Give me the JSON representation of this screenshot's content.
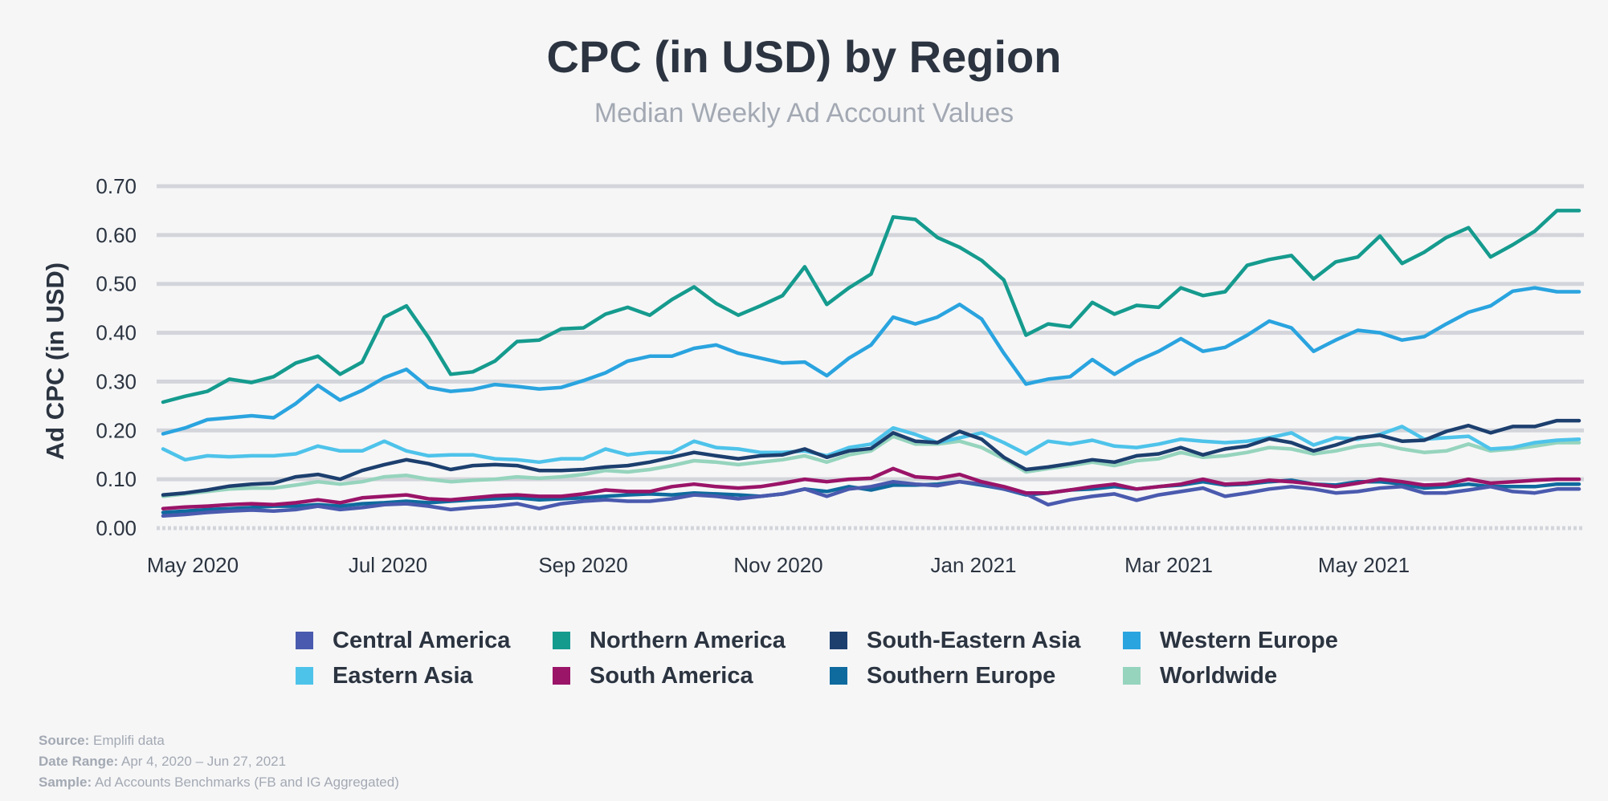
{
  "title": "CPC (in USD) by Region",
  "subtitle": "Median Weekly Ad Account Values",
  "footnotes": {
    "source_label": "Source:",
    "source_value": "Emplifi data",
    "range_label": "Date Range:",
    "range_value": "Apr 4, 2020 – Jun 27, 2021",
    "sample_label": "Sample:",
    "sample_value": "Ad Accounts Benchmarks (FB and IG Aggregated)"
  },
  "chart_data": {
    "type": "line",
    "title": "CPC (in USD) by Region",
    "subtitle": "Median Weekly Ad Account Values",
    "xlabel": "",
    "ylabel": "Ad CPC (in USD)",
    "ylim": [
      0,
      0.7
    ],
    "yticks": [
      "0.00",
      "0.10",
      "0.20",
      "0.30",
      "0.40",
      "0.50",
      "0.60",
      "0.70"
    ],
    "xticks": [
      "May 2020",
      "Jul 2020",
      "Sep 2020",
      "Nov 2020",
      "Jan 2021",
      "Mar 2021",
      "May 2021"
    ],
    "x_note": "Weekly points, Apr 4, 2020 – Jun 27, 2021 (65 weeks)",
    "grid": true,
    "legend_position": "bottom",
    "series": [
      {
        "name": "Central America",
        "color": "#4a5aae",
        "values": [
          0.025,
          0.028,
          0.032,
          0.035,
          0.037,
          0.035,
          0.038,
          0.045,
          0.038,
          0.042,
          0.048,
          0.05,
          0.045,
          0.038,
          0.042,
          0.045,
          0.05,
          0.04,
          0.05,
          0.055,
          0.058,
          0.055,
          0.055,
          0.06,
          0.068,
          0.065,
          0.06,
          0.065,
          0.07,
          0.08,
          0.065,
          0.08,
          0.085,
          0.095,
          0.09,
          0.087,
          0.095,
          0.09,
          0.08,
          0.07,
          0.048,
          0.058,
          0.065,
          0.07,
          0.057,
          0.068,
          0.075,
          0.082,
          0.065,
          0.072,
          0.08,
          0.085,
          0.08,
          0.072,
          0.075,
          0.082,
          0.085,
          0.072,
          0.072,
          0.078,
          0.085,
          0.075,
          0.072,
          0.08,
          0.08
        ]
      },
      {
        "name": "Northern America",
        "color": "#159b8e",
        "values": [
          0.258,
          0.27,
          0.28,
          0.305,
          0.298,
          0.31,
          0.338,
          0.352,
          0.315,
          0.34,
          0.432,
          0.455,
          0.39,
          0.315,
          0.32,
          0.342,
          0.382,
          0.385,
          0.408,
          0.41,
          0.438,
          0.452,
          0.436,
          0.468,
          0.494,
          0.46,
          0.436,
          0.455,
          0.476,
          0.535,
          0.458,
          0.492,
          0.52,
          0.637,
          0.632,
          0.595,
          0.575,
          0.548,
          0.508,
          0.395,
          0.418,
          0.412,
          0.462,
          0.438,
          0.456,
          0.452,
          0.492,
          0.476,
          0.484,
          0.538,
          0.55,
          0.558,
          0.51,
          0.545,
          0.555,
          0.598,
          0.542,
          0.565,
          0.595,
          0.615,
          0.555,
          0.58,
          0.608,
          0.65,
          0.65
        ]
      },
      {
        "name": "South-Eastern Asia",
        "color": "#1c3f6e",
        "values": [
          0.068,
          0.072,
          0.078,
          0.086,
          0.09,
          0.092,
          0.105,
          0.11,
          0.1,
          0.118,
          0.13,
          0.14,
          0.132,
          0.12,
          0.128,
          0.13,
          0.128,
          0.118,
          0.118,
          0.12,
          0.125,
          0.128,
          0.135,
          0.145,
          0.155,
          0.148,
          0.142,
          0.148,
          0.15,
          0.162,
          0.145,
          0.158,
          0.163,
          0.195,
          0.178,
          0.175,
          0.198,
          0.182,
          0.145,
          0.12,
          0.125,
          0.132,
          0.14,
          0.135,
          0.148,
          0.152,
          0.165,
          0.15,
          0.162,
          0.168,
          0.183,
          0.175,
          0.158,
          0.17,
          0.185,
          0.19,
          0.178,
          0.18,
          0.198,
          0.21,
          0.195,
          0.208,
          0.208,
          0.22,
          0.22
        ]
      },
      {
        "name": "Western Europe",
        "color": "#2aa4df",
        "values": [
          0.193,
          0.205,
          0.222,
          0.226,
          0.23,
          0.226,
          0.255,
          0.292,
          0.262,
          0.282,
          0.308,
          0.325,
          0.288,
          0.28,
          0.284,
          0.294,
          0.29,
          0.285,
          0.288,
          0.302,
          0.318,
          0.342,
          0.352,
          0.352,
          0.368,
          0.375,
          0.358,
          0.348,
          0.338,
          0.34,
          0.312,
          0.348,
          0.375,
          0.432,
          0.418,
          0.432,
          0.458,
          0.428,
          0.358,
          0.295,
          0.305,
          0.31,
          0.345,
          0.315,
          0.342,
          0.362,
          0.388,
          0.362,
          0.37,
          0.395,
          0.424,
          0.41,
          0.362,
          0.385,
          0.405,
          0.4,
          0.385,
          0.392,
          0.418,
          0.442,
          0.455,
          0.485,
          0.492,
          0.484,
          0.484
        ]
      },
      {
        "name": "Eastern Asia",
        "color": "#4ec3ea",
        "values": [
          0.162,
          0.14,
          0.148,
          0.146,
          0.148,
          0.148,
          0.152,
          0.168,
          0.158,
          0.158,
          0.178,
          0.158,
          0.148,
          0.15,
          0.15,
          0.142,
          0.14,
          0.135,
          0.142,
          0.142,
          0.162,
          0.15,
          0.155,
          0.155,
          0.178,
          0.165,
          0.162,
          0.155,
          0.155,
          0.158,
          0.148,
          0.165,
          0.172,
          0.205,
          0.192,
          0.175,
          0.185,
          0.195,
          0.175,
          0.152,
          0.178,
          0.172,
          0.18,
          0.168,
          0.165,
          0.172,
          0.182,
          0.178,
          0.175,
          0.178,
          0.185,
          0.195,
          0.17,
          0.185,
          0.182,
          0.192,
          0.208,
          0.182,
          0.185,
          0.188,
          0.162,
          0.165,
          0.175,
          0.18,
          0.182
        ]
      },
      {
        "name": "South America",
        "color": "#9a1468",
        "values": [
          0.04,
          0.043,
          0.045,
          0.048,
          0.05,
          0.048,
          0.052,
          0.058,
          0.052,
          0.062,
          0.065,
          0.068,
          0.06,
          0.058,
          0.062,
          0.066,
          0.068,
          0.065,
          0.065,
          0.07,
          0.078,
          0.075,
          0.075,
          0.085,
          0.09,
          0.085,
          0.082,
          0.085,
          0.092,
          0.1,
          0.095,
          0.1,
          0.102,
          0.122,
          0.105,
          0.102,
          0.11,
          0.095,
          0.085,
          0.072,
          0.072,
          0.078,
          0.085,
          0.09,
          0.08,
          0.085,
          0.09,
          0.1,
          0.09,
          0.092,
          0.098,
          0.095,
          0.09,
          0.085,
          0.092,
          0.1,
          0.095,
          0.088,
          0.09,
          0.1,
          0.092,
          0.095,
          0.098,
          0.1,
          0.1
        ]
      },
      {
        "name": "Southern Europe",
        "color": "#0f6a9e",
        "values": [
          0.032,
          0.035,
          0.038,
          0.04,
          0.042,
          0.045,
          0.045,
          0.048,
          0.045,
          0.05,
          0.052,
          0.055,
          0.052,
          0.055,
          0.058,
          0.06,
          0.062,
          0.058,
          0.06,
          0.062,
          0.065,
          0.068,
          0.07,
          0.068,
          0.072,
          0.07,
          0.068,
          0.065,
          0.07,
          0.08,
          0.075,
          0.085,
          0.078,
          0.088,
          0.088,
          0.09,
          0.095,
          0.088,
          0.08,
          0.068,
          0.072,
          0.078,
          0.08,
          0.085,
          0.08,
          0.085,
          0.088,
          0.095,
          0.088,
          0.09,
          0.095,
          0.098,
          0.09,
          0.088,
          0.095,
          0.095,
          0.09,
          0.082,
          0.085,
          0.09,
          0.085,
          0.085,
          0.085,
          0.09,
          0.09
        ]
      },
      {
        "name": "Worldwide",
        "color": "#96d4bd",
        "values": [
          0.065,
          0.07,
          0.075,
          0.08,
          0.082,
          0.082,
          0.088,
          0.095,
          0.09,
          0.095,
          0.105,
          0.108,
          0.1,
          0.095,
          0.098,
          0.1,
          0.105,
          0.102,
          0.105,
          0.11,
          0.118,
          0.115,
          0.12,
          0.128,
          0.138,
          0.135,
          0.13,
          0.135,
          0.14,
          0.148,
          0.135,
          0.15,
          0.158,
          0.188,
          0.172,
          0.172,
          0.178,
          0.165,
          0.142,
          0.115,
          0.122,
          0.128,
          0.135,
          0.128,
          0.138,
          0.142,
          0.155,
          0.145,
          0.148,
          0.155,
          0.165,
          0.162,
          0.152,
          0.158,
          0.168,
          0.172,
          0.162,
          0.155,
          0.158,
          0.172,
          0.158,
          0.162,
          0.168,
          0.175,
          0.175
        ]
      }
    ]
  }
}
